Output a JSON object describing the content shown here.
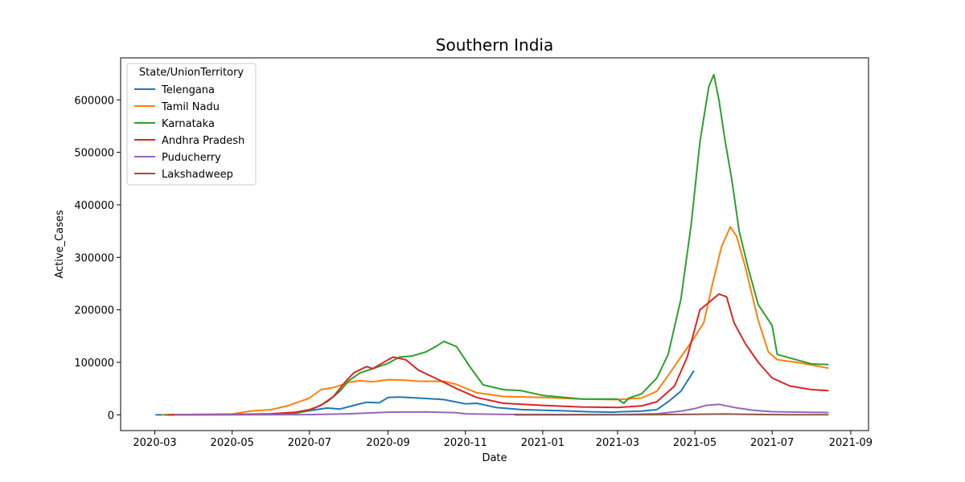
{
  "chart_data": {
    "type": "line",
    "title": "Southern India",
    "xlabel": "Date",
    "ylabel": "Active_Cases",
    "xlim": [
      "2020-02-03",
      "2021-09-15"
    ],
    "ylim": [
      -30000,
      680000
    ],
    "x_ticks": [
      "2020-03",
      "2020-05",
      "2020-07",
      "2020-09",
      "2020-11",
      "2021-01",
      "2021-03",
      "2021-05",
      "2021-07",
      "2021-09"
    ],
    "y_ticks": [
      0,
      100000,
      200000,
      300000,
      400000,
      500000,
      600000
    ],
    "y_tick_labels": [
      "0",
      "100000",
      "200000",
      "300000",
      "400000",
      "500000",
      "600000"
    ],
    "grid": false,
    "legend": {
      "title": "State/UnionTerritory",
      "placement": "top-left"
    },
    "series": [
      {
        "name": "Telengana",
        "color": "#1f77b4",
        "points": [
          [
            "2020-03-02",
            0
          ],
          [
            "2020-04-01",
            200
          ],
          [
            "2020-05-01",
            700
          ],
          [
            "2020-06-01",
            1500
          ],
          [
            "2020-06-20",
            4000
          ],
          [
            "2020-07-01",
            8000
          ],
          [
            "2020-07-15",
            13000
          ],
          [
            "2020-07-25",
            11000
          ],
          [
            "2020-08-05",
            18000
          ],
          [
            "2020-08-15",
            24000
          ],
          [
            "2020-08-25",
            23000
          ],
          [
            "2020-09-01",
            33000
          ],
          [
            "2020-09-10",
            34000
          ],
          [
            "2020-09-25",
            32000
          ],
          [
            "2020-10-15",
            29000
          ],
          [
            "2020-11-01",
            21000
          ],
          [
            "2020-11-10",
            22000
          ],
          [
            "2020-11-25",
            14000
          ],
          [
            "2020-12-15",
            10000
          ],
          [
            "2021-01-15",
            8000
          ],
          [
            "2021-02-05",
            6000
          ],
          [
            "2021-02-25",
            5000
          ],
          [
            "2021-03-01",
            5500
          ],
          [
            "2021-03-20",
            7000
          ],
          [
            "2021-04-01",
            10000
          ],
          [
            "2021-04-10",
            25000
          ],
          [
            "2021-04-20",
            45000
          ],
          [
            "2021-04-30",
            83000
          ]
        ]
      },
      {
        "name": "Tamil Nadu",
        "color": "#ff7f0e",
        "points": [
          [
            "2020-03-07",
            0
          ],
          [
            "2020-04-01",
            800
          ],
          [
            "2020-05-01",
            1500
          ],
          [
            "2020-05-15",
            7000
          ],
          [
            "2020-06-01",
            10000
          ],
          [
            "2020-06-15",
            18000
          ],
          [
            "2020-07-01",
            32000
          ],
          [
            "2020-07-10",
            48000
          ],
          [
            "2020-07-20",
            52000
          ],
          [
            "2020-08-01",
            62000
          ],
          [
            "2020-08-10",
            65000
          ],
          [
            "2020-08-20",
            63000
          ],
          [
            "2020-09-01",
            67000
          ],
          [
            "2020-09-15",
            66000
          ],
          [
            "2020-09-25",
            64000
          ],
          [
            "2020-10-15",
            64000
          ],
          [
            "2020-10-25",
            58000
          ],
          [
            "2020-11-10",
            42000
          ],
          [
            "2020-12-01",
            35000
          ],
          [
            "2021-01-01",
            33000
          ],
          [
            "2021-02-01",
            30000
          ],
          [
            "2021-03-01",
            29000
          ],
          [
            "2021-03-20",
            32000
          ],
          [
            "2021-04-01",
            45000
          ],
          [
            "2021-04-10",
            75000
          ],
          [
            "2021-04-20",
            110000
          ],
          [
            "2021-04-30",
            145000
          ],
          [
            "2021-05-08",
            175000
          ],
          [
            "2021-05-15",
            250000
          ],
          [
            "2021-05-22",
            320000
          ],
          [
            "2021-05-29",
            358000
          ],
          [
            "2021-06-03",
            340000
          ],
          [
            "2021-06-10",
            280000
          ],
          [
            "2021-06-20",
            180000
          ],
          [
            "2021-06-28",
            120000
          ],
          [
            "2021-07-05",
            105000
          ],
          [
            "2021-07-20",
            100000
          ],
          [
            "2021-08-01",
            95000
          ],
          [
            "2021-08-14",
            89000
          ]
        ]
      },
      {
        "name": "Karnataka",
        "color": "#2ca02c",
        "points": [
          [
            "2020-03-09",
            0
          ],
          [
            "2020-04-01",
            200
          ],
          [
            "2020-05-01",
            500
          ],
          [
            "2020-06-01",
            1000
          ],
          [
            "2020-06-20",
            3000
          ],
          [
            "2020-07-01",
            8000
          ],
          [
            "2020-07-15",
            25000
          ],
          [
            "2020-07-25",
            45000
          ],
          [
            "2020-08-01",
            65000
          ],
          [
            "2020-08-10",
            80000
          ],
          [
            "2020-08-20",
            88000
          ],
          [
            "2020-09-01",
            98000
          ],
          [
            "2020-09-10",
            110000
          ],
          [
            "2020-09-20",
            112000
          ],
          [
            "2020-10-01",
            120000
          ],
          [
            "2020-10-10",
            132000
          ],
          [
            "2020-10-15",
            140000
          ],
          [
            "2020-10-25",
            130000
          ],
          [
            "2020-11-05",
            90000
          ],
          [
            "2020-11-15",
            57000
          ],
          [
            "2020-12-01",
            48000
          ],
          [
            "2020-12-15",
            46000
          ],
          [
            "2021-01-01",
            37000
          ],
          [
            "2021-02-01",
            30000
          ],
          [
            "2021-03-01",
            30000
          ],
          [
            "2021-03-06",
            22000
          ],
          [
            "2021-03-10",
            32000
          ],
          [
            "2021-03-20",
            40000
          ],
          [
            "2021-04-01",
            70000
          ],
          [
            "2021-04-10",
            115000
          ],
          [
            "2021-04-20",
            220000
          ],
          [
            "2021-04-28",
            360000
          ],
          [
            "2021-05-05",
            520000
          ],
          [
            "2021-05-12",
            625000
          ],
          [
            "2021-05-16",
            648000
          ],
          [
            "2021-05-20",
            600000
          ],
          [
            "2021-05-25",
            520000
          ],
          [
            "2021-05-30",
            450000
          ],
          [
            "2021-06-05",
            350000
          ],
          [
            "2021-06-12",
            280000
          ],
          [
            "2021-06-20",
            210000
          ],
          [
            "2021-07-01",
            170000
          ],
          [
            "2021-07-05",
            115000
          ],
          [
            "2021-07-20",
            105000
          ],
          [
            "2021-08-01",
            97000
          ],
          [
            "2021-08-14",
            96000
          ]
        ]
      },
      {
        "name": "Andhra Pradesh",
        "color": "#d62728",
        "points": [
          [
            "2020-03-12",
            0
          ],
          [
            "2020-04-01",
            300
          ],
          [
            "2020-05-01",
            800
          ],
          [
            "2020-06-01",
            2000
          ],
          [
            "2020-06-20",
            5000
          ],
          [
            "2020-07-01",
            10000
          ],
          [
            "2020-07-10",
            18000
          ],
          [
            "2020-07-20",
            35000
          ],
          [
            "2020-07-30",
            65000
          ],
          [
            "2020-08-05",
            80000
          ],
          [
            "2020-08-15",
            92000
          ],
          [
            "2020-08-20",
            88000
          ],
          [
            "2020-09-01",
            105000
          ],
          [
            "2020-09-05",
            110000
          ],
          [
            "2020-09-15",
            105000
          ],
          [
            "2020-09-25",
            85000
          ],
          [
            "2020-10-10",
            68000
          ],
          [
            "2020-10-25",
            50000
          ],
          [
            "2020-11-10",
            33000
          ],
          [
            "2020-12-01",
            22000
          ],
          [
            "2021-01-01",
            18000
          ],
          [
            "2021-02-01",
            15000
          ],
          [
            "2021-03-01",
            14000
          ],
          [
            "2021-03-20",
            17000
          ],
          [
            "2021-04-01",
            25000
          ],
          [
            "2021-04-15",
            55000
          ],
          [
            "2021-04-25",
            110000
          ],
          [
            "2021-05-05",
            200000
          ],
          [
            "2021-05-15",
            220000
          ],
          [
            "2021-05-20",
            230000
          ],
          [
            "2021-05-26",
            225000
          ],
          [
            "2021-06-01",
            175000
          ],
          [
            "2021-06-10",
            135000
          ],
          [
            "2021-06-20",
            100000
          ],
          [
            "2021-07-01",
            70000
          ],
          [
            "2021-07-15",
            55000
          ],
          [
            "2021-08-01",
            48000
          ],
          [
            "2021-08-14",
            46000
          ]
        ]
      },
      {
        "name": "Puducherry",
        "color": "#9467bd",
        "points": [
          [
            "2020-03-17",
            0
          ],
          [
            "2020-06-01",
            100
          ],
          [
            "2020-07-01",
            500
          ],
          [
            "2020-08-01",
            2000
          ],
          [
            "2020-09-01",
            5000
          ],
          [
            "2020-10-01",
            5500
          ],
          [
            "2020-10-25",
            4000
          ],
          [
            "2020-11-01",
            2000
          ],
          [
            "2020-12-01",
            800
          ],
          [
            "2021-03-01",
            500
          ],
          [
            "2021-04-01",
            2000
          ],
          [
            "2021-04-20",
            7000
          ],
          [
            "2021-05-01",
            12000
          ],
          [
            "2021-05-10",
            18000
          ],
          [
            "2021-05-20",
            20000
          ],
          [
            "2021-06-01",
            14000
          ],
          [
            "2021-06-15",
            9000
          ],
          [
            "2021-07-01",
            6000
          ],
          [
            "2021-08-14",
            4500
          ]
        ]
      },
      {
        "name": "Lakshadweep",
        "color": "#8c564b",
        "points": [
          [
            "2020-12-10",
            0
          ],
          [
            "2021-01-18",
            0
          ],
          [
            "2021-02-01",
            200
          ],
          [
            "2021-03-01",
            300
          ],
          [
            "2021-04-01",
            500
          ],
          [
            "2021-05-01",
            1000
          ],
          [
            "2021-05-25",
            1500
          ],
          [
            "2021-06-15",
            700
          ],
          [
            "2021-07-15",
            200
          ],
          [
            "2021-08-14",
            100
          ]
        ]
      }
    ]
  }
}
